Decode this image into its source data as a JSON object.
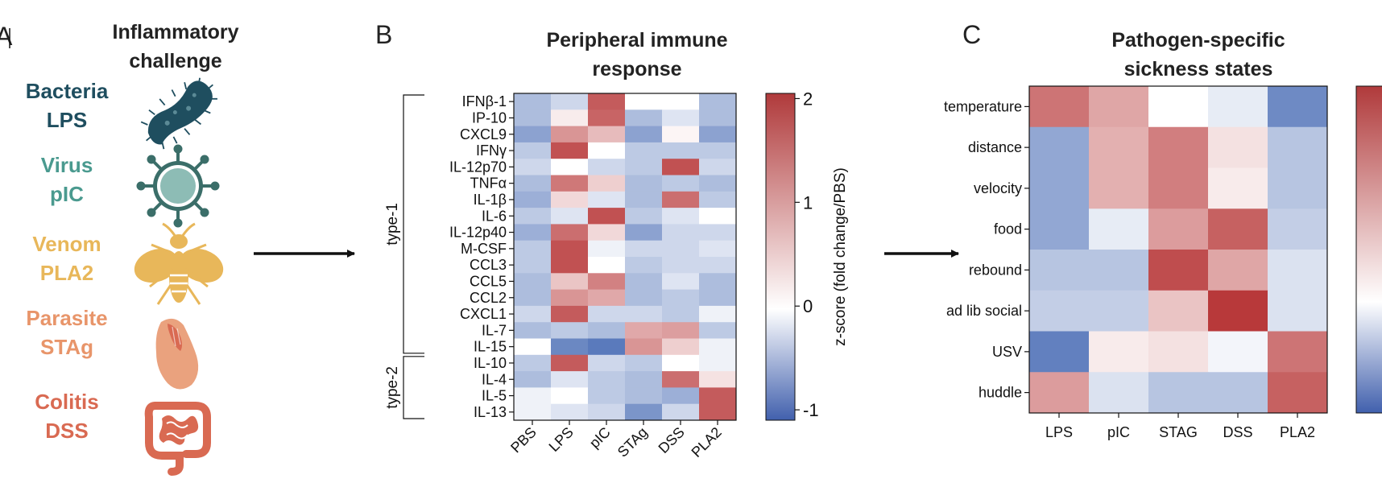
{
  "panel_a": {
    "label": "A",
    "title_lines": [
      "Inflammatory",
      "challenge"
    ],
    "challenges": [
      {
        "lines": [
          "Bacteria",
          "LPS"
        ],
        "color": "#1f4e5f",
        "icon": "bacteria-icon"
      },
      {
        "lines": [
          "Virus",
          "pIC"
        ],
        "color": "#4a9a8f",
        "icon": "virus-icon"
      },
      {
        "lines": [
          "Venom",
          "PLA2"
        ],
        "color": "#e8b75a",
        "icon": "bee-icon"
      },
      {
        "lines": [
          "Parasite",
          "STAg"
        ],
        "color": "#e8956a",
        "icon": "parasite-icon"
      },
      {
        "lines": [
          "Colitis",
          "DSS"
        ],
        "color": "#d96a52",
        "icon": "intestine-icon"
      }
    ]
  },
  "colors": {
    "low": "#4a6db5",
    "mid": "#ffffff",
    "high": "#b8393a"
  },
  "chart_data": [
    {
      "type": "heatmap",
      "panel_label": "B",
      "title_lines": [
        "Peripheral immune",
        "response"
      ],
      "rows": [
        "IFNβ-1",
        "IP-10",
        "CXCL9",
        "IFNγ",
        "IL-12p70",
        "TNFα",
        "IL-1β",
        "IL-6",
        "IL-12p40",
        "M-CSF",
        "CCL3",
        "CCL5",
        "CCL2",
        "CXCL1",
        "IL-7",
        "IL-15",
        "IL-10",
        "IL-4",
        "IL-5",
        "IL-13"
      ],
      "columns": [
        "PBS",
        "LPS",
        "pIC",
        "STAg",
        "DSS",
        "PLA2"
      ],
      "groups": [
        {
          "label": "type-1",
          "from": 0,
          "to": 15
        },
        {
          "label": "type-2",
          "from": 16,
          "to": 19
        }
      ],
      "values": [
        [
          -0.5,
          -0.3,
          1.7,
          0.0,
          0.0,
          -0.5
        ],
        [
          -0.5,
          0.2,
          1.6,
          -0.5,
          -0.2,
          -0.5
        ],
        [
          -0.7,
          1.1,
          0.7,
          -0.7,
          0.1,
          -0.7
        ],
        [
          -0.4,
          1.8,
          0.0,
          -0.4,
          -0.4,
          -0.4
        ],
        [
          -0.3,
          0.0,
          -0.3,
          -0.4,
          1.8,
          -0.3
        ],
        [
          -0.5,
          1.4,
          0.5,
          -0.5,
          -0.4,
          -0.5
        ],
        [
          -0.6,
          0.4,
          -0.2,
          -0.5,
          1.5,
          -0.4
        ],
        [
          -0.4,
          -0.2,
          1.8,
          -0.4,
          -0.2,
          0.0
        ],
        [
          -0.6,
          1.5,
          0.4,
          -0.7,
          -0.3,
          -0.3
        ],
        [
          -0.4,
          1.8,
          -0.1,
          -0.3,
          -0.3,
          -0.2
        ],
        [
          -0.4,
          1.8,
          0.0,
          -0.4,
          -0.3,
          -0.3
        ],
        [
          -0.5,
          0.6,
          1.3,
          -0.5,
          -0.2,
          -0.5
        ],
        [
          -0.5,
          1.1,
          0.9,
          -0.5,
          -0.4,
          -0.5
        ],
        [
          -0.3,
          1.7,
          -0.3,
          -0.3,
          -0.4,
          -0.1
        ],
        [
          -0.5,
          -0.4,
          -0.5,
          0.9,
          1.0,
          -0.4
        ],
        [
          0.0,
          -0.9,
          -1.0,
          1.1,
          0.5,
          -0.1
        ],
        [
          -0.4,
          1.7,
          -0.3,
          -0.4,
          0.0,
          -0.1
        ],
        [
          -0.5,
          -0.2,
          -0.4,
          -0.5,
          1.5,
          0.3
        ],
        [
          -0.1,
          0.0,
          -0.4,
          -0.5,
          -0.6,
          1.7
        ],
        [
          -0.1,
          -0.2,
          -0.3,
          -0.8,
          -0.3,
          1.7
        ]
      ],
      "vmin": -1.1,
      "vmax": 2.05,
      "colorbar": {
        "ticks": [
          2,
          1,
          0,
          -1
        ],
        "label": "z-score (fold change/PBS)"
      }
    },
    {
      "type": "heatmap",
      "panel_label": "C",
      "title_lines": [
        "Pathogen-specific",
        "sickness states"
      ],
      "rows": [
        "temperature",
        "distance",
        "velocity",
        "food",
        "rebound",
        "ad lib social",
        "USV",
        "huddle"
      ],
      "columns": [
        "LPS",
        "pIC",
        "STAG",
        "DSS",
        "PLA2"
      ],
      "values": [
        [
          1.4,
          0.9,
          0.0,
          -0.2,
          -1.2
        ],
        [
          -0.9,
          0.8,
          1.3,
          0.3,
          -0.6
        ],
        [
          -0.9,
          0.8,
          1.3,
          0.2,
          -0.6
        ],
        [
          -0.9,
          -0.2,
          1.0,
          1.6,
          -0.5
        ],
        [
          -0.6,
          -0.6,
          1.8,
          0.9,
          -0.3
        ],
        [
          -0.5,
          -0.5,
          0.6,
          2.0,
          -0.3
        ],
        [
          -1.3,
          0.2,
          0.3,
          -0.1,
          1.4
        ],
        [
          1.0,
          -0.3,
          -0.6,
          -0.6,
          1.6
        ]
      ],
      "vmin": -1.5,
      "vmax": 2.0,
      "colorbar": {
        "ticks": [],
        "label": ""
      }
    }
  ]
}
